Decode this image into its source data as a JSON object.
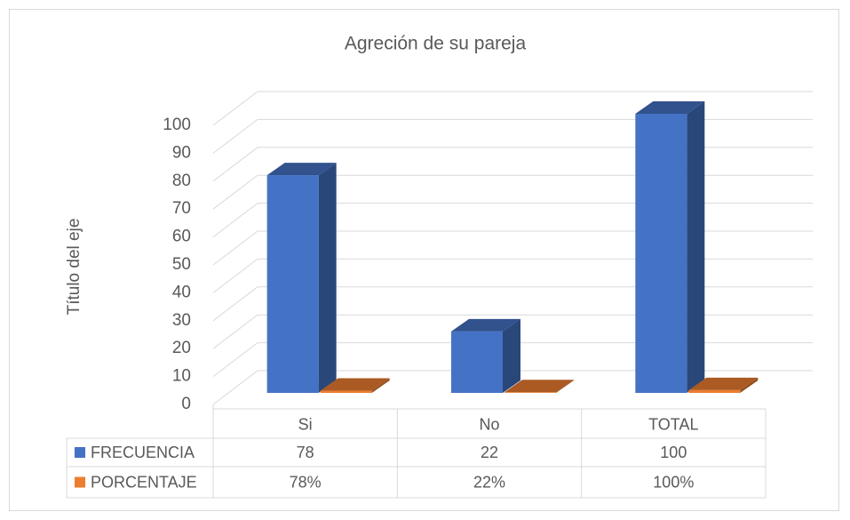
{
  "chart_data": {
    "type": "bar3d",
    "title": "Agreción de su pareja",
    "y_label": "Título del eje",
    "categories": [
      "Si",
      "No",
      "TOTAL"
    ],
    "series": [
      {
        "name": "FRECUENCIA",
        "color": "#4472c4",
        "values": [
          78,
          22,
          100
        ]
      },
      {
        "name": "PORCENTAJE",
        "color": "#ed7d31",
        "values": [
          0.78,
          0.22,
          1
        ],
        "value_labels": [
          "78%",
          "22%",
          "100%"
        ]
      }
    ],
    "ylim": [
      0,
      100
    ],
    "yticks": [
      0,
      10,
      20,
      30,
      40,
      50,
      60,
      70,
      80,
      90,
      100
    ],
    "grid": true
  }
}
